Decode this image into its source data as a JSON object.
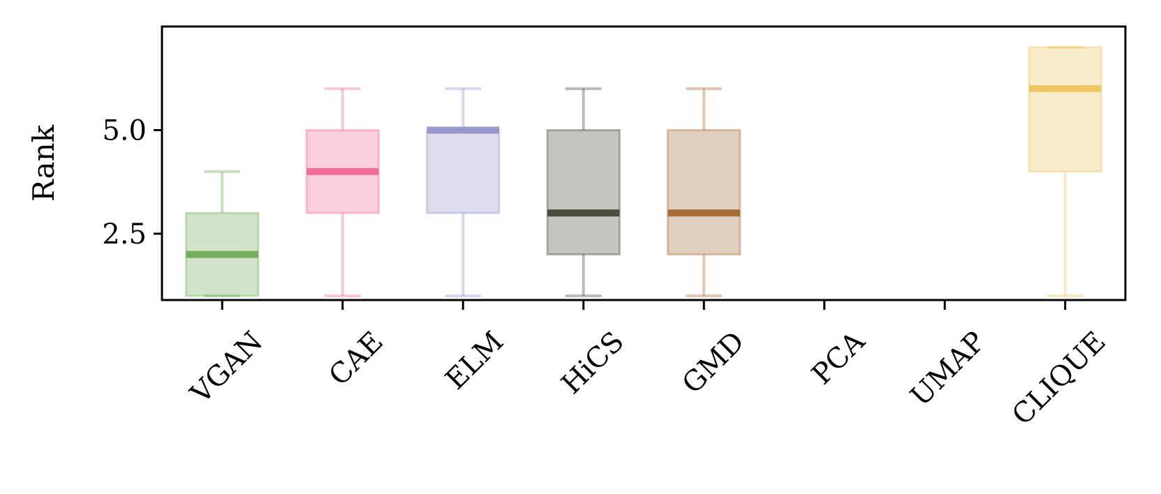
{
  "chart_data": {
    "type": "box",
    "title": "",
    "xlabel": "",
    "ylabel": "Rank",
    "ylim": [
      0.9,
      7.5
    ],
    "yticks": [
      {
        "value": 2.5,
        "label": "2.5"
      },
      {
        "value": 5.0,
        "label": "5.0"
      }
    ],
    "grid": false,
    "categories": [
      "VGAN",
      "CAE",
      "ELM",
      "HiCS",
      "GMD",
      "PCA",
      "UMAP",
      "CLIQUE"
    ],
    "boxes": [
      {
        "name": "VGAN",
        "whislo": 1,
        "q1": 1,
        "med": 2,
        "q3": 3,
        "whishi": 4,
        "color": "#6aa84f"
      },
      {
        "name": "CAE",
        "whislo": 1,
        "q1": 3,
        "med": 4,
        "q3": 5,
        "whishi": 6,
        "color": "#f06292"
      },
      {
        "name": "ELM",
        "whislo": 1,
        "q1": 3,
        "med": 5,
        "q3": 5,
        "whishi": 6,
        "color": "#9090c8"
      },
      {
        "name": "HiCS",
        "whislo": 1,
        "q1": 2,
        "med": 3,
        "q3": 5,
        "whishi": 6,
        "color": "#3c4030"
      },
      {
        "name": "GMD",
        "whislo": 1,
        "q1": 2,
        "med": 3,
        "q3": 5,
        "whishi": 6,
        "color": "#a0622a"
      },
      {
        "name": "PCA",
        "whislo": null,
        "q1": null,
        "med": null,
        "q3": null,
        "whishi": null,
        "color": "#cccccc"
      },
      {
        "name": "UMAP",
        "whislo": null,
        "q1": null,
        "med": null,
        "q3": null,
        "whishi": null,
        "color": "#cccccc"
      },
      {
        "name": "CLIQUE",
        "whislo": 1,
        "q1": 4,
        "med": 6,
        "q3": 7,
        "whishi": 7,
        "color": "#ecc35a"
      }
    ]
  }
}
